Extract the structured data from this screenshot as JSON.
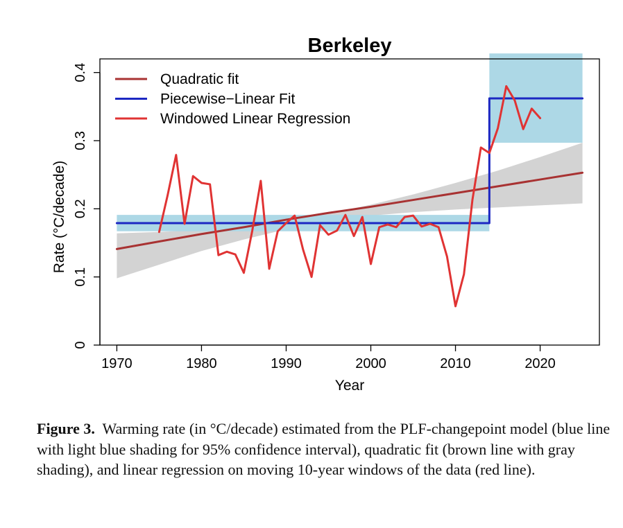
{
  "chart_data": {
    "type": "line",
    "title": "Berkeley",
    "xlabel": "Year",
    "ylabel": "Rate (°C/decade)",
    "xlim": [
      1968,
      2027
    ],
    "ylim": [
      0,
      0.42
    ],
    "xticks": [
      1970,
      1980,
      1990,
      2000,
      2010,
      2020
    ],
    "xtick_labels": [
      "1970",
      "1980",
      "1990",
      "2000",
      "2010",
      "2020"
    ],
    "yticks": [
      0,
      0.1,
      0.2,
      0.3,
      0.4
    ],
    "ytick_labels": [
      "0",
      "0.1",
      "0.2",
      "0.3",
      "0.4"
    ],
    "legend_position": "top-left",
    "legend": [
      {
        "label": "Quadratic fit",
        "color": "#a83232"
      },
      {
        "label": "Piecewise−Linear Fit",
        "color": "#1c27c2"
      },
      {
        "label": "Windowed Linear Regression",
        "color": "#e03333"
      }
    ],
    "bands": [
      {
        "name": "Quadratic fit 95% CI",
        "color": "#d3d3d3",
        "x": [
          1970,
          1975,
          1980,
          1985,
          1990,
          1995,
          2000,
          2005,
          2010,
          2015,
          2020,
          2025
        ],
        "lower": [
          0.098,
          0.118,
          0.138,
          0.155,
          0.17,
          0.182,
          0.19,
          0.195,
          0.199,
          0.202,
          0.205,
          0.208
        ],
        "upper": [
          0.164,
          0.166,
          0.169,
          0.174,
          0.182,
          0.193,
          0.206,
          0.221,
          0.238,
          0.256,
          0.276,
          0.297
        ]
      },
      {
        "name": "Piecewise-Linear 95% CI (period 1)",
        "color": "#add8e6",
        "x": [
          1970,
          2014
        ],
        "lower": [
          0.167,
          0.167
        ],
        "upper": [
          0.191,
          0.191
        ]
      },
      {
        "name": "Piecewise-Linear 95% CI (period 2)",
        "color": "#add8e6",
        "x": [
          2014,
          2025
        ],
        "lower": [
          0.297,
          0.297
        ],
        "upper": [
          0.428,
          0.428
        ]
      }
    ],
    "series": [
      {
        "name": "Quadratic fit",
        "color": "#a83232",
        "x": [
          1970,
          1975,
          1980,
          1985,
          1990,
          1995,
          2000,
          2005,
          2010,
          2015,
          2020,
          2025
        ],
        "y": [
          0.141,
          0.152,
          0.163,
          0.173,
          0.184,
          0.194,
          0.203,
          0.213,
          0.223,
          0.233,
          0.243,
          0.253
        ]
      },
      {
        "name": "Piecewise−Linear Fit",
        "color": "#1c27c2",
        "x": [
          1970,
          2014,
          2014,
          2025
        ],
        "y": [
          0.179,
          0.179,
          0.362,
          0.362
        ]
      },
      {
        "name": "Windowed Linear Regression",
        "color": "#e03333",
        "x": [
          1975,
          1976,
          1977,
          1978,
          1979,
          1980,
          1981,
          1982,
          1983,
          1984,
          1985,
          1986,
          1987,
          1988,
          1989,
          1990,
          1991,
          1992,
          1993,
          1994,
          1995,
          1996,
          1997,
          1998,
          1999,
          2000,
          2001,
          2002,
          2003,
          2004,
          2005,
          2006,
          2007,
          2008,
          2009,
          2010,
          2011,
          2012,
          2013,
          2014,
          2015,
          2016,
          2017,
          2018,
          2019,
          2020
        ],
        "y": [
          0.166,
          0.22,
          0.279,
          0.178,
          0.248,
          0.238,
          0.236,
          0.132,
          0.137,
          0.133,
          0.106,
          0.168,
          0.241,
          0.112,
          0.167,
          0.179,
          0.19,
          0.14,
          0.1,
          0.176,
          0.162,
          0.168,
          0.191,
          0.16,
          0.188,
          0.119,
          0.173,
          0.177,
          0.173,
          0.188,
          0.19,
          0.174,
          0.178,
          0.173,
          0.13,
          0.057,
          0.104,
          0.213,
          0.29,
          0.282,
          0.318,
          0.38,
          0.359,
          0.317,
          0.347,
          0.333
        ]
      }
    ]
  },
  "caption": {
    "label": "Figure 3.",
    "text": "Warming rate (in °C/decade) estimated from the PLF-changepoint model (blue line with light blue shading for 95% confidence interval), quadratic fit (brown line with gray shading), and linear regression on moving 10-year windows of the data (red line)."
  }
}
